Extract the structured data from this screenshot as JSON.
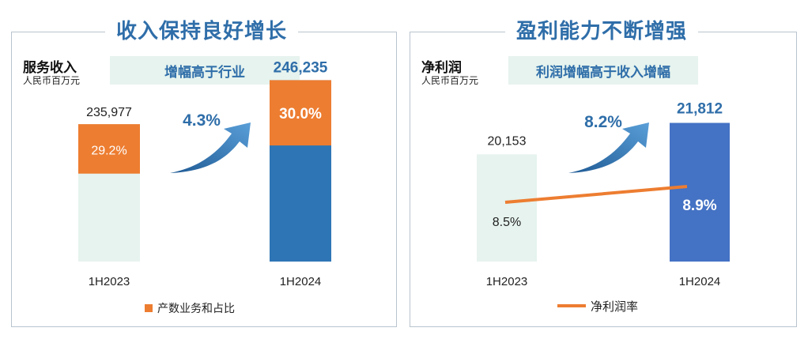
{
  "panels": {
    "left": {
      "title": "收入保持良好增长",
      "metric": "服务收入",
      "unit": "人民币百万元",
      "tag": "增幅高于行业",
      "growth_label": "4.3%",
      "legend": "产数业务和占比"
    },
    "right": {
      "title": "盈利能力不断增强",
      "metric": "净利润",
      "unit": "人民币百万元",
      "tag": "利润增幅高于收入增幅",
      "growth_label": "8.2%",
      "legend": "净利润率"
    }
  },
  "colors": {
    "title_blue": "#2f6ea9",
    "bar_light": "#e6f3ee",
    "bar_blue_left": "#2e75b6",
    "bar_blue_right": "#4472c4",
    "orange": "#ed7d31"
  },
  "chart_data": [
    {
      "type": "bar",
      "categories": [
        "1H2023",
        "1H2024"
      ],
      "series": [
        {
          "name": "服务收入",
          "values": [
            235977,
            246235
          ],
          "labels": [
            "235,977",
            "246,235"
          ]
        },
        {
          "name": "产数业务和占比",
          "share_percent": [
            29.2,
            30.0
          ],
          "labels": [
            "29.2%",
            "30.0%"
          ]
        }
      ],
      "annotation": "4.3%",
      "legend_position": "bottom"
    },
    {
      "type": "bar",
      "categories": [
        "1H2023",
        "1H2024"
      ],
      "series": [
        {
          "name": "净利润",
          "values": [
            20153,
            21812
          ],
          "labels": [
            "20,153",
            "21,812"
          ]
        },
        {
          "name": "净利润率",
          "type": "line",
          "values": [
            8.5,
            8.9
          ],
          "labels": [
            "8.5%",
            "8.9%"
          ]
        }
      ],
      "annotation": "8.2%",
      "legend_position": "bottom"
    }
  ]
}
